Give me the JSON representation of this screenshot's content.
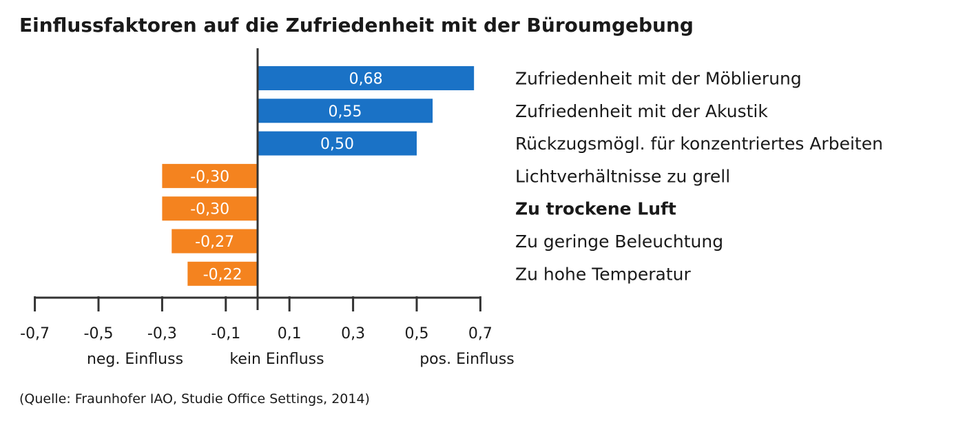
{
  "chart_data": {
    "type": "bar",
    "orientation": "horizontal",
    "title": "Einflussfaktoren auf die Zufriedenheit mit der Büroumgebung",
    "categories": [
      "Zufriedenheit mit der Möblierung",
      "Zufriedenheit mit der Akustik",
      "Rückzugsmögl. für konzentriertes Arbeiten",
      "Lichtverhältnisse zu grell",
      "Zu trockene Luft",
      "Zu geringe Beleuchtung",
      "Zu hohe Temperatur"
    ],
    "highlighted_category": "Zu trockene Luft",
    "values": [
      0.68,
      0.55,
      0.5,
      -0.3,
      -0.3,
      -0.27,
      -0.22
    ],
    "value_labels": [
      "0,68",
      "0,55",
      "0,50",
      "-0,30",
      "-0,30",
      "-0,27",
      "-0,22"
    ],
    "xlim": [
      -0.7,
      0.7
    ],
    "ticks": [
      -0.7,
      -0.5,
      -0.3,
      -0.1,
      0.1,
      0.3,
      0.5,
      0.7
    ],
    "tick_labels": [
      "-0,7",
      "-0,5",
      "-0,3",
      "-0,1",
      "0,1",
      "0,3",
      "0,5",
      "0,7"
    ],
    "axis_captions": [
      "neg. Einfluss",
      "kein Einfluss",
      "pos. Einfluss"
    ],
    "colors": {
      "positive": "#1a72c6",
      "negative": "#f4831f",
      "axis": "#333333"
    },
    "grid": false,
    "legend": "none"
  },
  "source": "(Quelle: Fraunhofer IAO, Studie Office Settings, 2014)"
}
